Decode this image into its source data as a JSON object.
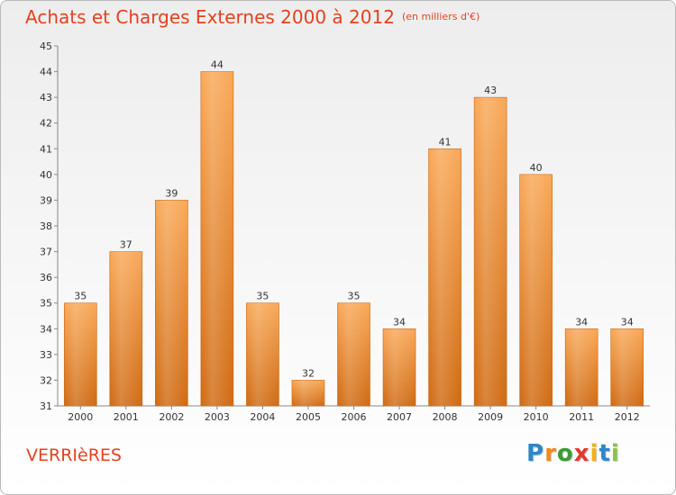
{
  "header": {
    "title": "Achats et Charges Externes 2000 à 2012",
    "unit": "(en milliers d'€)"
  },
  "footer": {
    "city": "VERRIèRES",
    "logo_letters": [
      "P",
      "r",
      "o",
      "x",
      "i",
      "t",
      "i"
    ]
  },
  "colors": {
    "bar_light": "#f9a857",
    "bar_dark": "#d06a12",
    "title": "#e4421e"
  },
  "chart_data": {
    "type": "bar",
    "title": "Achats et Charges Externes 2000 à 2012",
    "subtitle": "(en milliers d'€)",
    "categories": [
      "2000",
      "2001",
      "2002",
      "2003",
      "2004",
      "2005",
      "2006",
      "2007",
      "2008",
      "2009",
      "2010",
      "2011",
      "2012"
    ],
    "values": [
      35,
      37,
      39,
      44,
      35,
      32,
      35,
      34,
      41,
      43,
      40,
      34,
      34
    ],
    "data_labels": [
      "35",
      "37",
      "39",
      "44",
      "35",
      "32",
      "35",
      "34",
      "41",
      "43",
      "40",
      "34",
      "34"
    ],
    "ylim": [
      31,
      45
    ],
    "yticks": [
      31,
      32,
      33,
      34,
      35,
      36,
      37,
      38,
      39,
      40,
      41,
      42,
      43,
      44,
      45
    ],
    "ytick_labels": [
      "31",
      "32",
      "33",
      "34",
      "35",
      "36",
      "37",
      "38",
      "39",
      "40",
      "41",
      "42",
      "43",
      "44",
      "45"
    ],
    "grid": false,
    "legend": "none"
  }
}
